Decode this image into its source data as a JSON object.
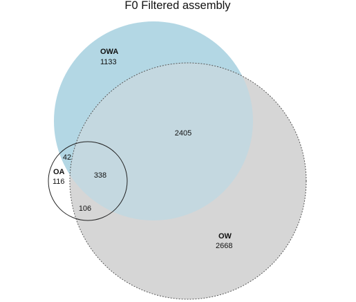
{
  "title": "F0 Filtered assembly",
  "sets": {
    "owa": {
      "label": "OWA",
      "count": "1133",
      "color": "#b3d7e4"
    },
    "ow": {
      "label": "OW",
      "count": "2668",
      "color": "#d6d6d6"
    },
    "oa": {
      "label": "OA",
      "count": "116",
      "color": "#ffffff"
    }
  },
  "overlaps": {
    "owa_ow": "2405",
    "owa_oa": "42",
    "owa_ow_oa": "338",
    "ow_oa": "106"
  },
  "colors": {
    "owa_ow_overlap": "#c4d8e0",
    "outline_owa": "#b3d7e4",
    "outline_ow": "#555555",
    "outline_oa": "#222222"
  }
}
